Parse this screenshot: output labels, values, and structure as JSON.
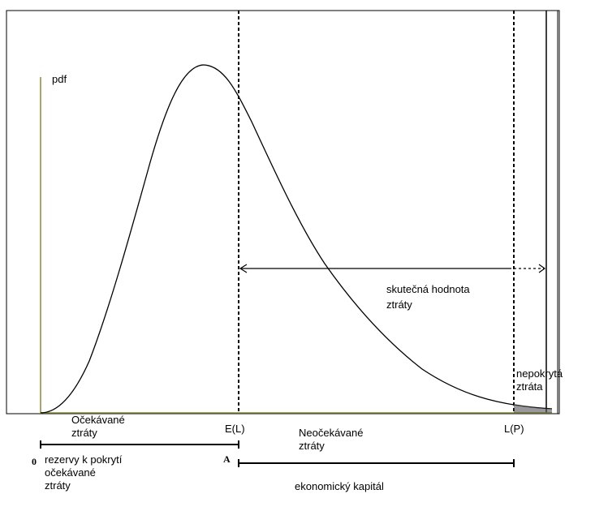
{
  "labels": {
    "y_axis": "pdf",
    "expected_loss": "E(L)",
    "loss_quantile": "L(P)",
    "true_loss": "skutečná hodnota\nztráty",
    "uncovered_loss": "nepokrytá\nztráta",
    "expected_losses": "Očekávané\nztráty",
    "unexpected_losses": "Neočekávané\nztráty",
    "reserves": "rezervy k pokrytí\nočekávané\nztráty",
    "economic_capital": "ekonomický kapitál",
    "zero_mark": "0",
    "a_mark": "A"
  }
}
